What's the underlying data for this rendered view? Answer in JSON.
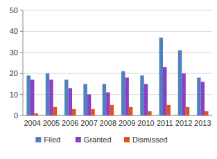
{
  "chart_data": {
    "type": "bar",
    "categories": [
      "2004",
      "2005",
      "2006",
      "2007",
      "2008",
      "2009",
      "2010",
      "2011",
      "2012",
      "2013"
    ],
    "series": [
      {
        "name": "Filed",
        "color": "#4f81bd",
        "values": [
          19,
          20,
          17,
          15,
          15,
          21,
          19,
          37,
          31,
          18
        ]
      },
      {
        "name": "Granted",
        "color": "#8b3fc4",
        "values": [
          17,
          17,
          13,
          10,
          11,
          18,
          15,
          23,
          20,
          16
        ]
      },
      {
        "name": "Dismissed",
        "color": "#e4521c",
        "values": [
          1,
          4,
          3,
          3,
          5,
          4,
          2,
          5,
          4,
          2
        ]
      }
    ],
    "ylim": [
      0,
      50
    ],
    "yticks": [
      0,
      10,
      20,
      30,
      40,
      50
    ],
    "grid": true,
    "legend": "bottom"
  }
}
